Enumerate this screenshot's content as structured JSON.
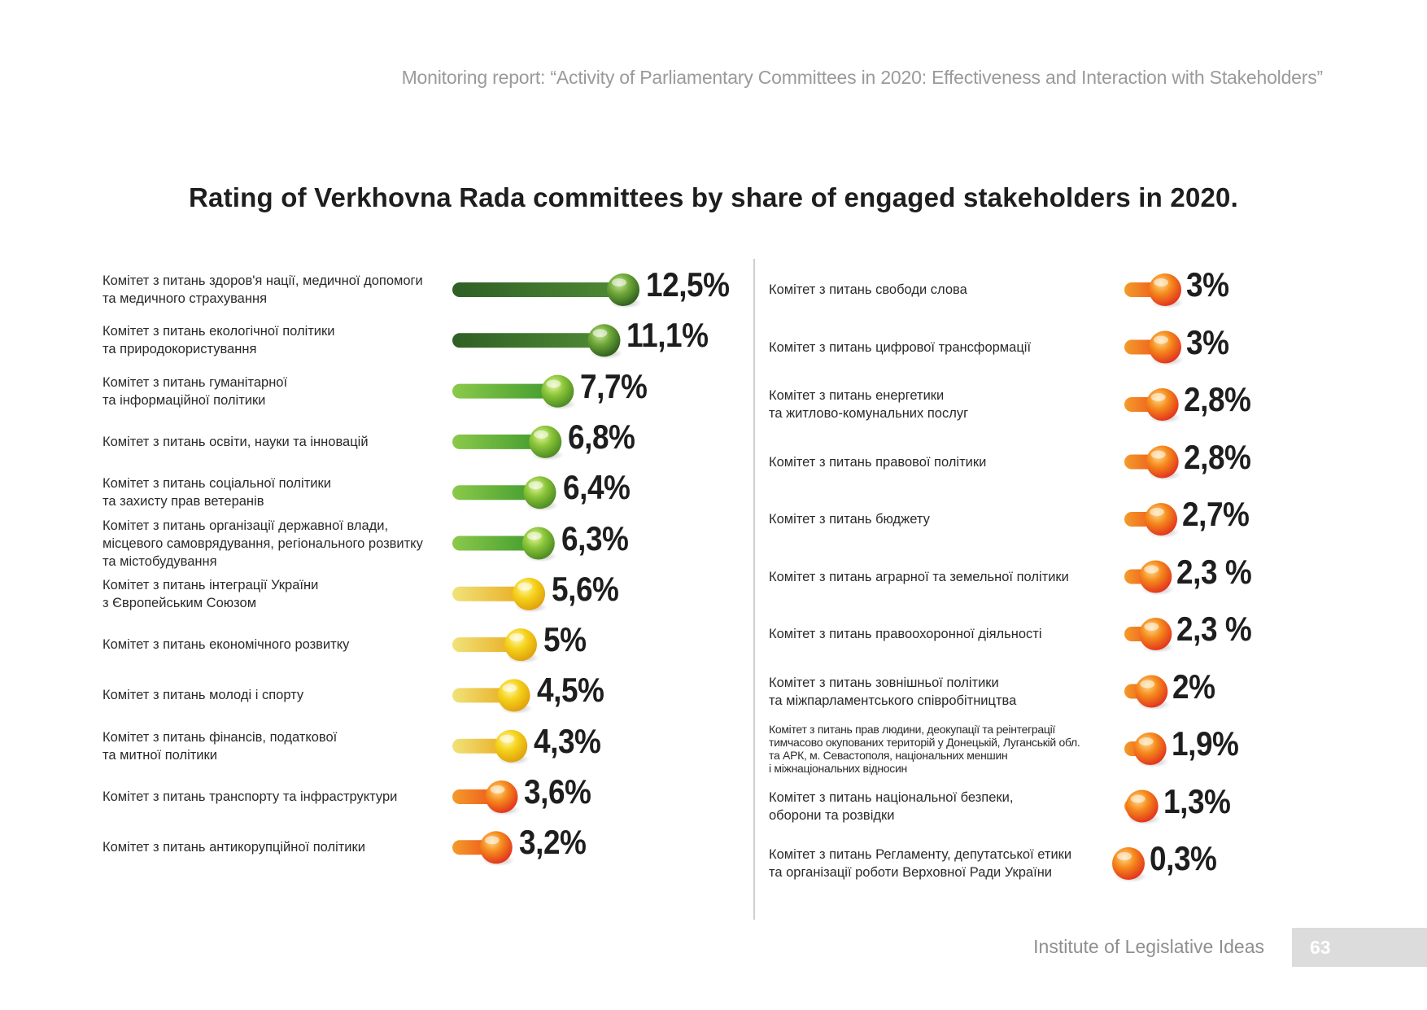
{
  "header": {
    "report_title": "Monitoring report: “Activity of Parliamentary Committees in 2020: Effectiveness and Interaction with Stakeholders”"
  },
  "colors": {
    "dark_green": "#3f7a2a",
    "light_green": "#6dbb34",
    "yellow": "#f3d21a",
    "orange": "#f26a1b",
    "divider": "#cfcfcf",
    "footer_box": "#dcdcdc"
  },
  "chart_data": {
    "type": "bar",
    "title": "Rating of Verkhovna Rada committees by share of engaged stakeholders in 2020.",
    "unit": "%",
    "max_value": 12.5,
    "columns": [
      {
        "items": [
          {
            "lines": [
              "Комітет з питань здоров'я нації, медичної допомоги",
              "та медичного страхування"
            ],
            "value": 12.5,
            "label": "12,5%",
            "color_group": "dark_green"
          },
          {
            "lines": [
              "Комітет з питань екологічної політики",
              "та природокористування"
            ],
            "value": 11.1,
            "label": "11,1%",
            "color_group": "dark_green"
          },
          {
            "lines": [
              "Комітет з питань гуманітарної",
              "та інформаційної політики"
            ],
            "value": 7.7,
            "label": "7,7%",
            "color_group": "light_green"
          },
          {
            "lines": [
              "Комітет з питань освіти, науки та інновацій"
            ],
            "value": 6.8,
            "label": "6,8%",
            "color_group": "light_green"
          },
          {
            "lines": [
              "Комітет з питань соціальної політики",
              "та захисту прав ветеранів"
            ],
            "value": 6.4,
            "label": "6,4%",
            "color_group": "light_green"
          },
          {
            "lines": [
              "Комітет з питань організації державної влади,",
              "місцевого самоврядування, регіонального розвитку",
              "та містобудування"
            ],
            "value": 6.3,
            "label": "6,3%",
            "color_group": "light_green"
          },
          {
            "lines": [
              "Комітет з питань інтеграції України",
              "з Європейським Союзом"
            ],
            "value": 5.6,
            "label": "5,6%",
            "color_group": "yellow"
          },
          {
            "lines": [
              "Комітет з питань економічного розвитку"
            ],
            "value": 5.0,
            "label": "5%",
            "color_group": "yellow"
          },
          {
            "lines": [
              "Комітет з питань молоді і спорту"
            ],
            "value": 4.5,
            "label": "4,5%",
            "color_group": "yellow"
          },
          {
            "lines": [
              "Комітет з питань фінансів, податкової",
              "та митної політики"
            ],
            "value": 4.3,
            "label": "4,3%",
            "color_group": "yellow"
          },
          {
            "lines": [
              "Комітет з питань транспорту та інфраструктури"
            ],
            "value": 3.6,
            "label": "3,6%",
            "color_group": "orange"
          },
          {
            "lines": [
              "Комітет з питань антикорупційної політики"
            ],
            "value": 3.2,
            "label": "3,2%",
            "color_group": "orange"
          }
        ]
      },
      {
        "items": [
          {
            "lines": [
              "Комітет з питань свободи слова"
            ],
            "value": 3.0,
            "label": "3%",
            "color_group": "orange"
          },
          {
            "lines": [
              "Комітет з питань цифрової трансформації"
            ],
            "value": 3.0,
            "label": "3%",
            "color_group": "orange"
          },
          {
            "lines": [
              "Комітет з питань енергетики",
              "та житлово-комунальних послуг"
            ],
            "value": 2.8,
            "label": "2,8%",
            "color_group": "orange"
          },
          {
            "lines": [
              "Комітет з питань правової політики"
            ],
            "value": 2.8,
            "label": "2,8%",
            "color_group": "orange"
          },
          {
            "lines": [
              "Комітет з питань бюджету"
            ],
            "value": 2.7,
            "label": "2,7%",
            "color_group": "orange"
          },
          {
            "lines": [
              "Комітет з питань аграрної та земельної політики"
            ],
            "value": 2.3,
            "label": "2,3 %",
            "color_group": "orange"
          },
          {
            "lines": [
              "Комітет з питань правоохоронної діяльності"
            ],
            "value": 2.3,
            "label": "2,3 %",
            "color_group": "orange"
          },
          {
            "lines": [
              "Комітет з питань зовнішньої політики",
              "та міжпарламентського співробітництва"
            ],
            "value": 2.0,
            "label": "2%",
            "color_group": "orange"
          },
          {
            "lines": [
              "Комітет з питань прав людини, деокупації та реінтеграції",
              "тимчасово окупованих територій у Донецькій, Луганській обл.",
              "та АРК, м. Севастополя, національних меншин",
              "і міжнаціональних відносин"
            ],
            "value": 1.9,
            "label": "1,9%",
            "color_group": "orange",
            "small": true
          },
          {
            "lines": [
              "Комітет з питань національної безпеки,",
              "оборони та розвідки"
            ],
            "value": 1.3,
            "label": "1,3%",
            "color_group": "orange"
          },
          {
            "lines": [
              "Комітет з питань Регламенту, депутатської етики",
              "та організації роботи Верховної Ради України"
            ],
            "value": 0.3,
            "label": "0,3%",
            "color_group": "orange"
          }
        ]
      }
    ]
  },
  "footer": {
    "organization": "Institute of Legislative Ideas",
    "page_number": "63"
  }
}
